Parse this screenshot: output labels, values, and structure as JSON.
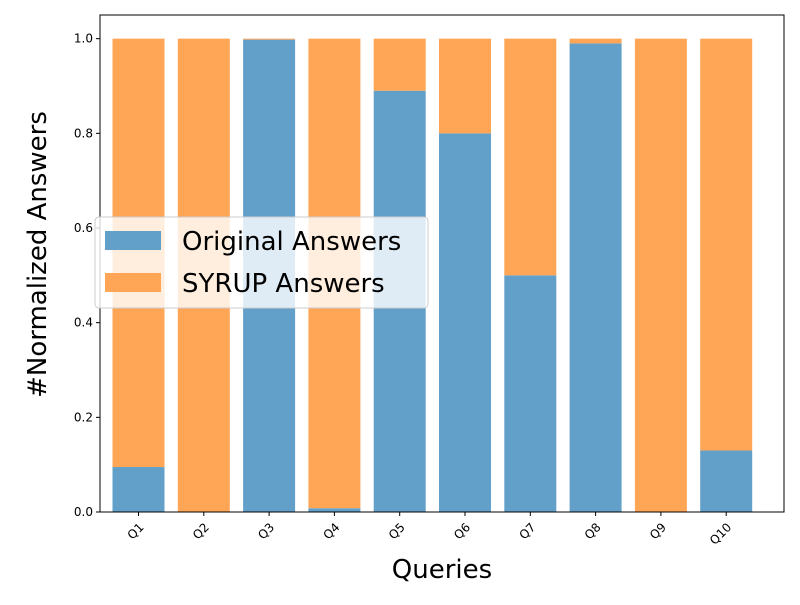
{
  "chart_data": {
    "type": "bar",
    "stacked": true,
    "title": "",
    "xlabel": "Queries",
    "ylabel": "#Normalized Answers",
    "ylim": [
      0,
      1.05
    ],
    "yticks": [
      "0.0",
      "0.2",
      "0.4",
      "0.6",
      "0.8",
      "1.0"
    ],
    "ytick_values": [
      0,
      0.2,
      0.4,
      0.6,
      0.8,
      1.0
    ],
    "grid": false,
    "legend_position": "center-left",
    "categories": [
      "Q1",
      "Q2",
      "Q3",
      "Q4",
      "Q5",
      "Q6",
      "Q7",
      "Q8",
      "Q9",
      "Q10"
    ],
    "series": [
      {
        "name": "Original Answers",
        "color": "#62a0ca",
        "values": [
          0.095,
          0.0,
          0.998,
          0.008,
          0.89,
          0.8,
          0.5,
          0.99,
          0.0,
          0.13
        ]
      },
      {
        "name": "SYRUP Answers",
        "color": "#ffa556",
        "values": [
          0.905,
          1.0,
          0.002,
          0.992,
          0.11,
          0.2,
          0.5,
          0.01,
          1.0,
          0.87
        ]
      }
    ]
  }
}
